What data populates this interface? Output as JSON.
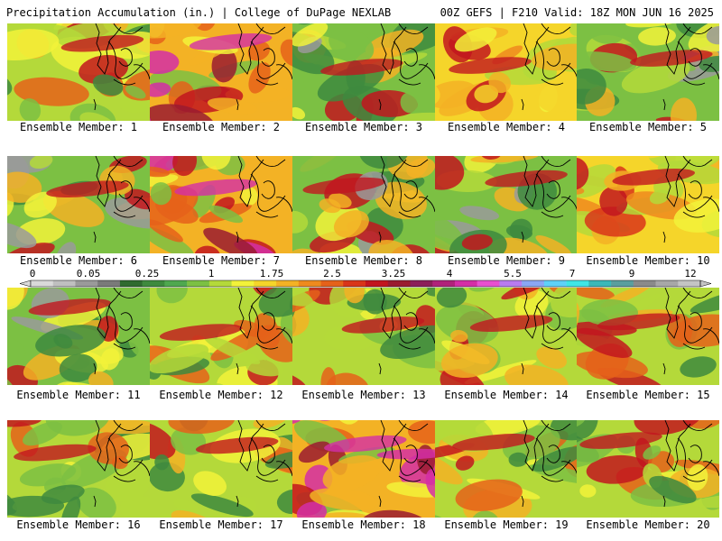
{
  "header": {
    "title_left": "Precipitation Accumulation (in.) | College of DuPage NEXLAB",
    "title_right": "00Z GEFS | F210 Valid: 18Z MON JUN 16 2025"
  },
  "caption_prefix": "Ensemble Member:",
  "members": [
    {
      "label": "Ensemble Member: 1",
      "palette": "green-red",
      "seed": 1
    },
    {
      "label": "Ensemble Member: 2",
      "palette": "red-magenta",
      "seed": 2
    },
    {
      "label": "Ensemble Member: 3",
      "palette": "green-gray",
      "seed": 3
    },
    {
      "label": "Ensemble Member: 4",
      "palette": "yellow-red",
      "seed": 4
    },
    {
      "label": "Ensemble Member: 5",
      "palette": "green-gray",
      "seed": 5
    },
    {
      "label": "Ensemble Member: 6",
      "palette": "green-gray",
      "seed": 6
    },
    {
      "label": "Ensemble Member: 7",
      "palette": "red-magenta",
      "seed": 7
    },
    {
      "label": "Ensemble Member: 8",
      "palette": "green-gray",
      "seed": 8
    },
    {
      "label": "Ensemble Member: 9",
      "palette": "green-gray",
      "seed": 9
    },
    {
      "label": "Ensemble Member: 10",
      "palette": "yellow-red",
      "seed": 10
    },
    {
      "label": "Ensemble Member: 11",
      "palette": "green-gray",
      "seed": 11
    },
    {
      "label": "Ensemble Member: 12",
      "palette": "green-red",
      "seed": 12
    },
    {
      "label": "Ensemble Member: 13",
      "palette": "green-red",
      "seed": 13
    },
    {
      "label": "Ensemble Member: 14",
      "palette": "green-red",
      "seed": 14
    },
    {
      "label": "Ensemble Member: 15",
      "palette": "green-red",
      "seed": 15
    },
    {
      "label": "Ensemble Member: 16",
      "palette": "green-red",
      "seed": 16
    },
    {
      "label": "Ensemble Member: 17",
      "palette": "green-red",
      "seed": 17
    },
    {
      "label": "Ensemble Member: 18",
      "palette": "red-magenta",
      "seed": 18
    },
    {
      "label": "Ensemble Member: 19",
      "palette": "green-red",
      "seed": 19
    },
    {
      "label": "Ensemble Member: 20",
      "palette": "green-red",
      "seed": 20
    }
  ],
  "legend": {
    "units": "in.",
    "tick_labels": [
      "0",
      "0.05",
      "0.25",
      "1",
      "1.75",
      "2.5",
      "3.25",
      "4",
      "5.5",
      "7",
      "9",
      "12"
    ],
    "colors": [
      "#d9d9d9",
      "#bfbfbf",
      "#9a9a9a",
      "#7a7a7a",
      "#2f6b2f",
      "#3e8a3e",
      "#4fa84f",
      "#7cc043",
      "#b4d93a",
      "#f2f23a",
      "#f5d52a",
      "#f3b225",
      "#ee8a1e",
      "#e5621a",
      "#d9351a",
      "#c2161f",
      "#9a1b30",
      "#8c1f5a",
      "#b0227a",
      "#d42ea6",
      "#e84fcf",
      "#b87bf0",
      "#8aa6f5",
      "#5ed1f8",
      "#3fe6e6",
      "#3ab8b8",
      "#5a9e9e",
      "#8a8a8a",
      "#a7a7a7",
      "#c4c4c4"
    ]
  },
  "map_colors": {
    "coast": "#000000",
    "lake_fill": "none"
  }
}
